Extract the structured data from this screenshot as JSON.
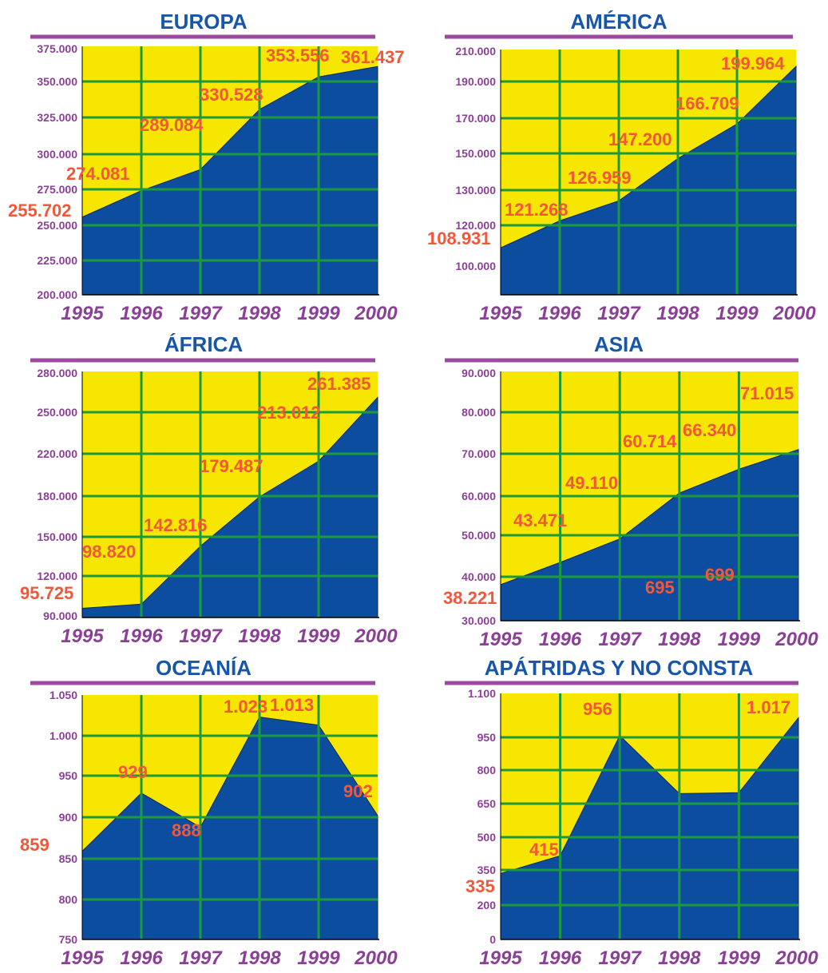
{
  "colors": {
    "plot_background": "#f6e600",
    "area_fill": "#0d4da0",
    "grid": "#1a9a3c",
    "title_text": "#1756a8",
    "title_rule": "#9b4aa0",
    "tick_text": "#8b3f97",
    "data_label": "#f2573a"
  },
  "chart_data": [
    {
      "type": "area",
      "title": "EUROPA",
      "categories": [
        "1995",
        "1996",
        "1997",
        "1998",
        "1999",
        "2000"
      ],
      "values": [
        255702,
        274081,
        289084,
        330528,
        353556,
        361437
      ],
      "data_labels": [
        "255.702",
        "274.081",
        "289.084",
        "330.528",
        "353.556",
        "361.437"
      ],
      "yticks": [
        200000,
        225000,
        250000,
        275000,
        300000,
        325000,
        350000,
        375000
      ],
      "ytick_labels": [
        "200.000",
        "225.000",
        "250.000",
        "275.000",
        "300.000",
        "325.000",
        "350.000",
        "375.000"
      ],
      "grid": true
    },
    {
      "type": "area",
      "title": "AMÉRICA",
      "categories": [
        "1995",
        "1996",
        "1997",
        "1998",
        "1999",
        "2000"
      ],
      "values": [
        108931,
        121268,
        126959,
        147200,
        166709,
        199964
      ],
      "data_labels": [
        "108.931",
        "121.268",
        "126.959",
        "147.200",
        "166.709",
        "199.964"
      ],
      "yticks": [
        100000,
        120000,
        130000,
        150000,
        170000,
        190000,
        210000
      ],
      "ytick_labels": [
        "100.000",
        "120.000",
        "130.000",
        "150.000",
        "170.000",
        "190.000",
        "210.000"
      ],
      "grid": true
    },
    {
      "type": "area",
      "title": "ÁFRICA",
      "categories": [
        "1995",
        "1996",
        "1997",
        "1998",
        "1999",
        "2000"
      ],
      "values": [
        95725,
        98820,
        142816,
        179487,
        213012,
        261385
      ],
      "data_labels": [
        "95.725",
        "98.820",
        "142.816",
        "179.487",
        "213.012",
        "261.385"
      ],
      "yticks": [
        90000,
        120000,
        150000,
        180000,
        220000,
        250000,
        280000
      ],
      "ytick_labels": [
        "90.000",
        "120.000",
        "150.000",
        "180.000",
        "220.000",
        "250.000",
        "280.000"
      ],
      "grid": true
    },
    {
      "type": "area",
      "title": "ASIA",
      "categories": [
        "1995",
        "1996",
        "1997",
        "1998",
        "1999",
        "2000"
      ],
      "values": [
        38221,
        43471,
        49110,
        60714,
        66340,
        71015
      ],
      "data_labels": [
        "38.221",
        "43.471",
        "49.110",
        "60.714",
        "66.340",
        "71.015"
      ],
      "yticks": [
        30000,
        40000,
        50000,
        60000,
        70000,
        80000,
        90000
      ],
      "ytick_labels": [
        "30.000",
        "40.000",
        "50.000",
        "60.000",
        "70.000",
        "80.000",
        "90.000"
      ],
      "grid": true
    },
    {
      "type": "area",
      "title": "OCEANÍA",
      "categories": [
        "1995",
        "1996",
        "1997",
        "1998",
        "1999",
        "2000"
      ],
      "values": [
        859,
        929,
        888,
        1023,
        1013,
        902
      ],
      "data_labels": [
        "859",
        "929",
        "888",
        "1.023",
        "1.013",
        "902"
      ],
      "yticks": [
        750,
        800,
        850,
        900,
        950,
        1000,
        1050
      ],
      "ytick_labels": [
        "750",
        "800",
        "850",
        "900",
        "950",
        "1.000",
        "1.050"
      ],
      "grid": true
    },
    {
      "type": "area",
      "title": "APÁTRIDAS Y NO CONSTA",
      "categories": [
        "1995",
        "1996",
        "1997",
        "1998",
        "1999",
        "2000"
      ],
      "values": [
        335,
        415,
        956,
        695,
        699,
        1017
      ],
      "data_labels": [
        "335",
        "415",
        "956",
        "695",
        "699",
        "1.017"
      ],
      "yticks": [
        0,
        200,
        350,
        500,
        650,
        800,
        950,
        1100
      ],
      "ytick_labels": [
        "0",
        "200",
        "350",
        "500",
        "650",
        "800",
        "950",
        "1.100"
      ],
      "grid": true
    }
  ]
}
